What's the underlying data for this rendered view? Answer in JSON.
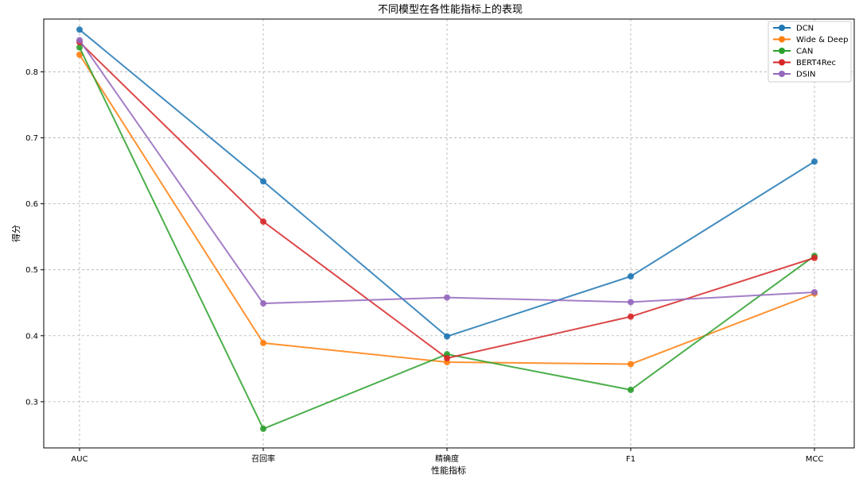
{
  "chart_data": {
    "type": "line",
    "title": "不同模型在各性能指标上的表现",
    "xlabel": "性能指标",
    "ylabel": "得分",
    "categories": [
      "AUC",
      "召回率",
      "精确度",
      "F1",
      "MCC"
    ],
    "ylim": [
      0.23,
      0.88
    ],
    "yticks": [
      "0.3",
      "0.4",
      "0.5",
      "0.6",
      "0.7",
      "0.8"
    ],
    "grid": true,
    "legend_position": "top-right",
    "series": [
      {
        "name": "DCN",
        "color": "#1f77b4",
        "values": [
          0.864,
          0.634,
          0.399,
          0.49,
          0.664
        ]
      },
      {
        "name": "Wide & Deep",
        "color": "#ff7f0e",
        "values": [
          0.826,
          0.389,
          0.36,
          0.357,
          0.464
        ]
      },
      {
        "name": "CAN",
        "color": "#2ca02c",
        "values": [
          0.837,
          0.259,
          0.372,
          0.318,
          0.521
        ]
      },
      {
        "name": "BERT4Rec",
        "color": "#d62728",
        "values": [
          0.845,
          0.573,
          0.366,
          0.429,
          0.518
        ]
      },
      {
        "name": "DSIN",
        "color": "#9467bd",
        "values": [
          0.848,
          0.449,
          0.458,
          0.451,
          0.466
        ]
      }
    ]
  }
}
